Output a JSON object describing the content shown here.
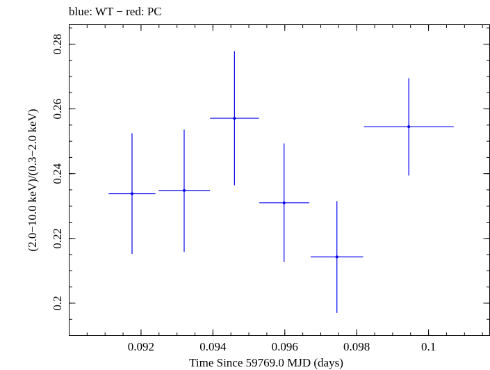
{
  "chart_data": {
    "type": "scatter",
    "title": "blue: WT − red: PC",
    "xlabel": "Time Since 59769.0 MJD (days)",
    "ylabel": "(2.0−10.0 keV)/(0.3−2.0 keV)",
    "xlim": [
      0.09,
      0.1017
    ],
    "ylim": [
      0.19,
      0.286
    ],
    "x_ticks": [
      {
        "value": 0.092,
        "label": "0.092"
      },
      {
        "value": 0.094,
        "label": "0.094"
      },
      {
        "value": 0.096,
        "label": "0.096"
      },
      {
        "value": 0.098,
        "label": "0.098"
      },
      {
        "value": 0.1,
        "label": "0.1"
      }
    ],
    "y_ticks": [
      {
        "value": 0.2,
        "label": "0.2"
      },
      {
        "value": 0.22,
        "label": "0.22"
      },
      {
        "value": 0.24,
        "label": "0.24"
      },
      {
        "value": 0.26,
        "label": "0.26"
      },
      {
        "value": 0.28,
        "label": "0.28"
      }
    ],
    "x_minor_step": 0.0005,
    "y_minor_step": 0.005,
    "series": [
      {
        "name": "WT",
        "color": "#0000ee",
        "points": [
          {
            "x": 0.09175,
            "xerr_lo": 0.00065,
            "xerr_hi": 0.00065,
            "y": 0.2338,
            "yerr_lo": 0.0186,
            "yerr_hi": 0.0187
          },
          {
            "x": 0.0932,
            "xerr_lo": 0.00071,
            "xerr_hi": 0.00072,
            "y": 0.2348,
            "yerr_lo": 0.019,
            "yerr_hi": 0.0188
          },
          {
            "x": 0.0946,
            "xerr_lo": 0.00068,
            "xerr_hi": 0.00068,
            "y": 0.2571,
            "yerr_lo": 0.0207,
            "yerr_hi": 0.0207
          },
          {
            "x": 0.09598,
            "xerr_lo": 0.00069,
            "xerr_hi": 0.0007,
            "y": 0.231,
            "yerr_lo": 0.0183,
            "yerr_hi": 0.0183
          },
          {
            "x": 0.09745,
            "xerr_lo": 0.00073,
            "xerr_hi": 0.00073,
            "y": 0.2143,
            "yerr_lo": 0.0173,
            "yerr_hi": 0.0172
          },
          {
            "x": 0.09945,
            "xerr_lo": 0.00125,
            "xerr_hi": 0.00125,
            "y": 0.2545,
            "yerr_lo": 0.0151,
            "yerr_hi": 0.015
          }
        ]
      }
    ]
  }
}
